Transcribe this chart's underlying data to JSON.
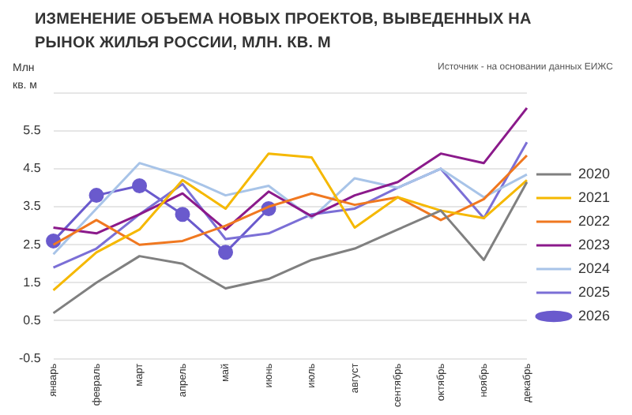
{
  "chart_data": {
    "type": "line",
    "title": "ИЗМЕНЕНИЕ ОБЪЕМА НОВЫХ ПРОЕКТОВ, ВЫВЕДЕННЫХ НА РЫНОК ЖИЛЬЯ РОССИИ, МЛН. КВ. М",
    "ylabel": "Млн кв. м",
    "annotations": [
      "Источник - на основании данных ЕИЖС"
    ],
    "categories": [
      "январь",
      "февраль",
      "март",
      "апрель",
      "май",
      "июнь",
      "июль",
      "август",
      "сентябрь",
      "октябрь",
      "ноябрь",
      "декабрь"
    ],
    "series": [
      {
        "name": "2020",
        "color": "#808080",
        "marker": "none",
        "values": [
          0.7,
          1.5,
          2.2,
          2.0,
          1.35,
          1.6,
          2.1,
          2.4,
          2.9,
          3.4,
          2.1,
          4.15
        ]
      },
      {
        "name": "2021",
        "color": "#f5b800",
        "marker": "none",
        "values": [
          1.3,
          2.3,
          2.9,
          4.2,
          3.45,
          4.9,
          4.8,
          2.95,
          3.75,
          3.4,
          3.2,
          4.2
        ]
      },
      {
        "name": "2022",
        "color": "#f07820",
        "marker": "none",
        "values": [
          2.5,
          3.15,
          2.5,
          2.6,
          3.0,
          3.5,
          3.85,
          3.55,
          3.75,
          3.15,
          3.7,
          4.85
        ]
      },
      {
        "name": "2023",
        "color": "#8b1a8b",
        "marker": "none",
        "values": [
          2.95,
          2.8,
          3.3,
          3.85,
          2.9,
          3.9,
          3.25,
          3.8,
          4.15,
          4.9,
          4.65,
          6.1
        ]
      },
      {
        "name": "2024",
        "color": "#a8c4e8",
        "marker": "none",
        "values": [
          2.25,
          3.45,
          4.65,
          4.3,
          3.8,
          4.05,
          3.2,
          4.25,
          4.0,
          4.5,
          3.75,
          4.35
        ]
      },
      {
        "name": "2025",
        "color": "#7b6fd6",
        "marker": "none",
        "values": [
          1.9,
          2.4,
          3.3,
          4.1,
          2.65,
          2.8,
          3.3,
          3.45,
          4.0,
          4.5,
          3.2,
          5.2
        ]
      },
      {
        "name": "2026",
        "color": "#6a5acd",
        "marker": "circle",
        "values": [
          2.6,
          3.8,
          4.05,
          3.3,
          2.3,
          3.45,
          null,
          null,
          null,
          null,
          null,
          null
        ]
      }
    ],
    "ylim": [
      -0.5,
      6.5
    ],
    "yticks": [
      -0.5,
      0.5,
      1.5,
      2.5,
      3.5,
      4.5,
      5.5,
      {
        "value": 6.5,
        "label": null
      }
    ],
    "grid": "y",
    "legend": "right",
    "line_style": "solid"
  }
}
